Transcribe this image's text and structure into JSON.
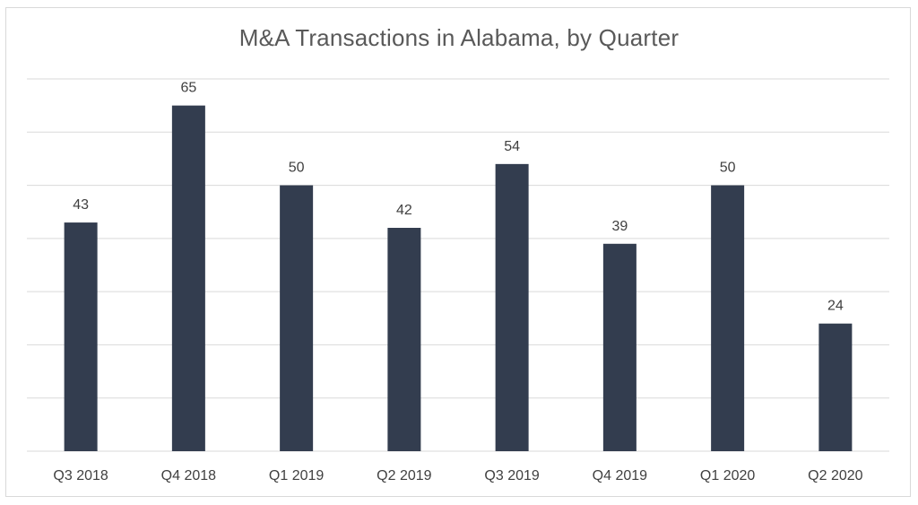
{
  "chart_data": {
    "type": "bar",
    "title": "M&A Transactions in Alabama, by Quarter",
    "categories": [
      "Q3 2018",
      "Q4 2018",
      "Q1 2019",
      "Q2 2019",
      "Q3 2019",
      "Q4 2019",
      "Q1 2020",
      "Q2 2020"
    ],
    "values": [
      43,
      65,
      50,
      42,
      54,
      39,
      50,
      24
    ],
    "xlabel": "",
    "ylabel": "",
    "ylim": [
      0,
      70
    ],
    "grid": true,
    "legend": "none",
    "data_labels": true,
    "colors": {
      "bar": "#333d4f",
      "grid": "#d9d9d9",
      "text": "#404040",
      "title": "#595959"
    }
  }
}
